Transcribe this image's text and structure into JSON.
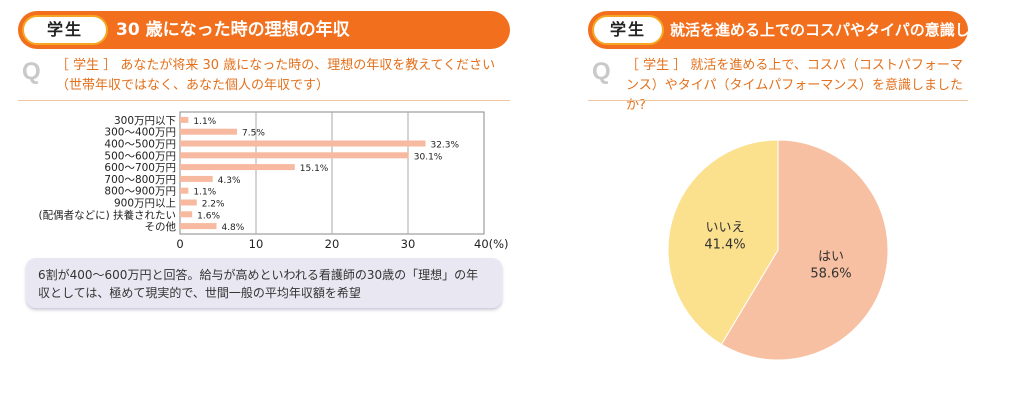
{
  "left": {
    "header": {
      "pill": "学生",
      "title": "30 歳になった時の理想の年収"
    },
    "question": {
      "mark": "Q",
      "text": "［ 学生 ］ あなたが将来 30 歳になった時の、理想の年収を教えてください（世帯年収ではなく、あなた個人の年収です）"
    },
    "note": "6割が400～600万円と回答。給与が高めといわれる看護師の30歳の「理想」の年収としては、極めて現実的で、世間一般の平均年収額を希望"
  },
  "right": {
    "header": {
      "pill": "学生",
      "title": "就活を進める上でのコスパやタイパの意識したか"
    },
    "question": {
      "mark": "Q",
      "text": "［ 学生 ］ 就活を進める上で、コスパ（コストパフォーマンス）やタイパ（タイムパフォーマンス）を意識しましたか?"
    }
  },
  "chart_data": [
    {
      "type": "bar",
      "orientation": "horizontal",
      "categories": [
        "300万円以下",
        "300～400万円",
        "400～500万円",
        "500～600万円",
        "600～700万円",
        "700～800万円",
        "800～900万円",
        "900万円以上",
        "(配偶者などに) 扶養されたい",
        "その他"
      ],
      "values": [
        1.1,
        7.5,
        32.3,
        30.1,
        15.1,
        4.3,
        1.1,
        2.2,
        1.6,
        4.8
      ],
      "value_labels": [
        "1.1%",
        "7.5%",
        "32.3%",
        "30.1%",
        "15.1%",
        "4.3%",
        "1.1%",
        "2.2%",
        "1.6%",
        "4.8%"
      ],
      "xticks": [
        "0",
        "10",
        "20",
        "30",
        "40(%)"
      ],
      "xlim": [
        0,
        40
      ],
      "grid": true,
      "color": "#f7b9a0"
    },
    {
      "type": "pie",
      "labels": [
        "はい",
        "いいえ"
      ],
      "values": [
        58.6,
        41.4
      ],
      "value_labels": [
        "58.6%",
        "41.4%"
      ],
      "colors": [
        "#f8c0a2",
        "#fbe08e"
      ]
    }
  ]
}
